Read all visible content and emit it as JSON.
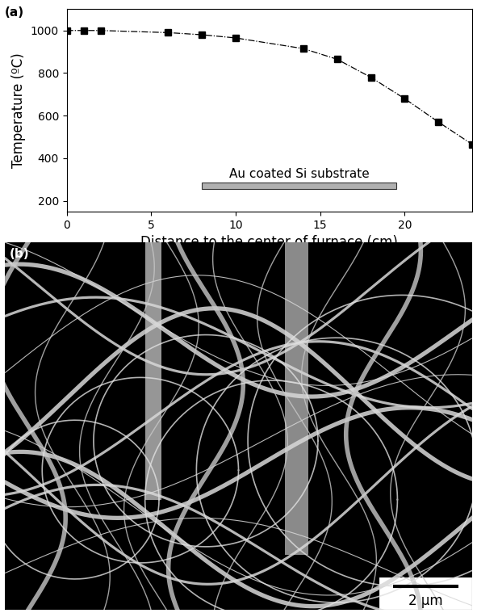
{
  "chart_data": {
    "type": "line",
    "label": "(a)",
    "x_label": "Distance to the center of furnace (cm)",
    "y_label": "Temperature (ºC)",
    "x": [
      0,
      1,
      2,
      6,
      8,
      10,
      14,
      16,
      18,
      20,
      22,
      24
    ],
    "values": [
      1000,
      1000,
      1000,
      990,
      980,
      965,
      915,
      865,
      780,
      680,
      570,
      465
    ],
    "color": "#000000",
    "marker": "square",
    "line_style": "dashdot",
    "xlim": [
      0,
      24
    ],
    "xticks": [
      0,
      5,
      10,
      15,
      20
    ],
    "ylim": [
      150,
      1100
    ],
    "yticks": [
      200,
      400,
      600,
      800,
      1000
    ],
    "annotations": [
      {
        "text": "Au coated Si substrate",
        "x": [
          8,
          19.5
        ],
        "y": 270
      }
    ]
  },
  "image": {
    "label": "(b)",
    "scale_bar": "2 μm"
  }
}
